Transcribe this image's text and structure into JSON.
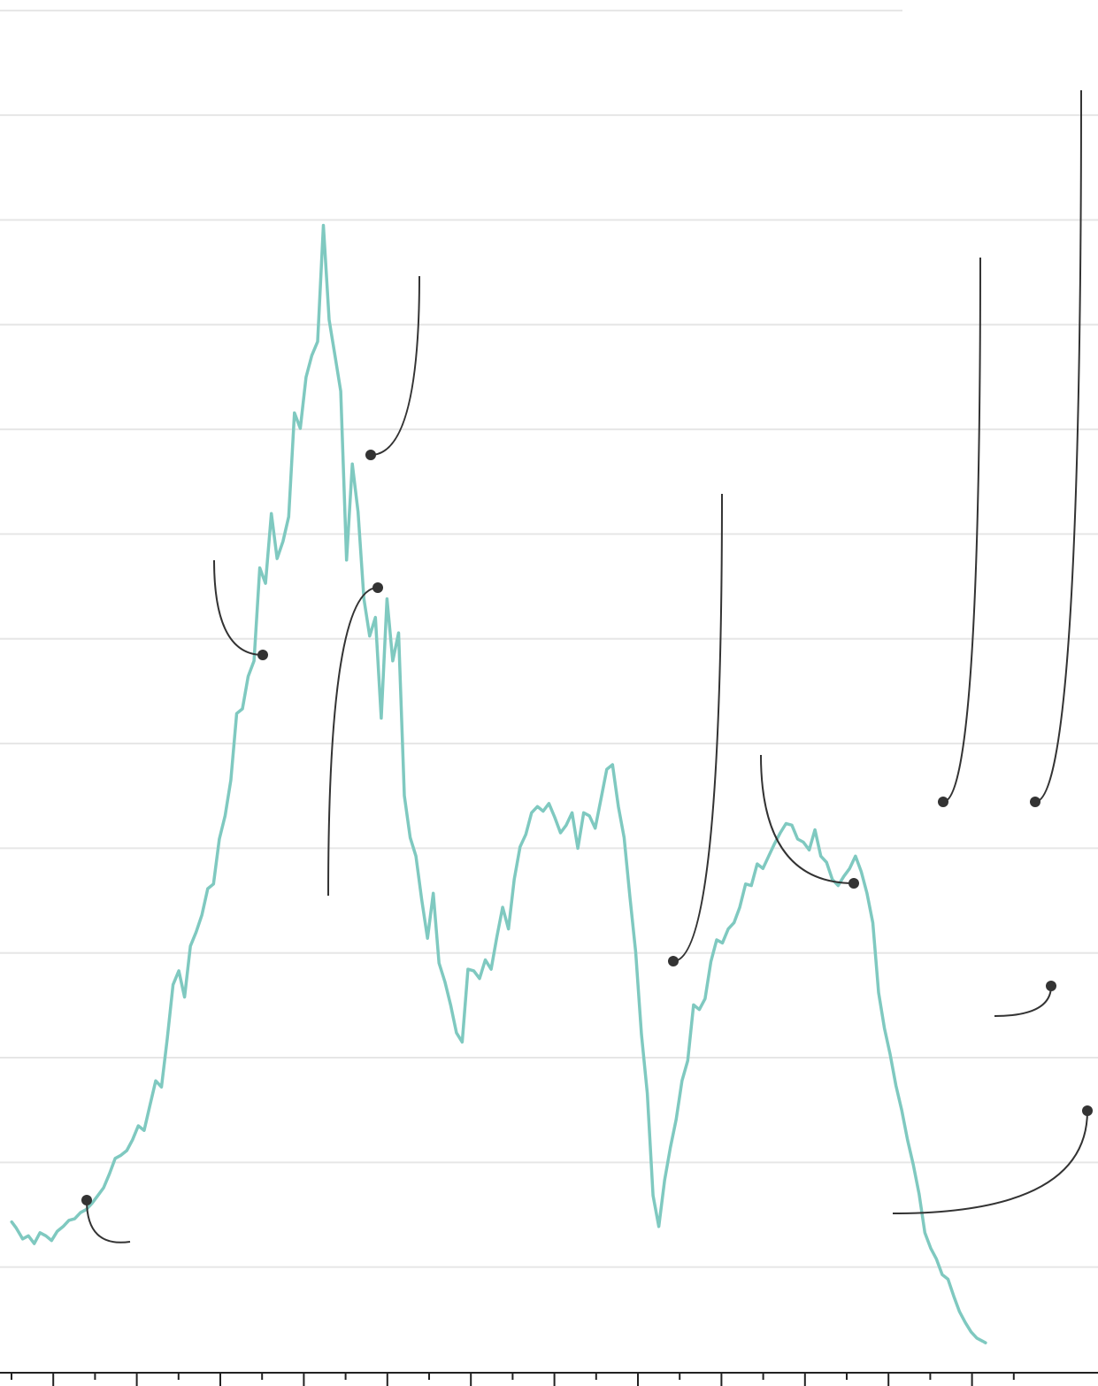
{
  "chart_data": {
    "type": "line",
    "title": "",
    "xlabel": "",
    "ylabel": "",
    "grid": "horizontal",
    "legend": "none",
    "xlim": [
      0,
      25
    ],
    "ylim": [
      0,
      13
    ],
    "y_gridlines": [
      1,
      2,
      3,
      4,
      5,
      6,
      7,
      8,
      9,
      10,
      11,
      12,
      13
    ],
    "x_tick_count": 25,
    "colors": {
      "series": "#7fc9c0",
      "annotation": "#333333",
      "grid": "#e6e6e6",
      "axis": "#222222"
    },
    "series": [
      {
        "values": [
          [
            0.11,
            1.8
          ],
          [
            0.19,
            1.72
          ],
          [
            0.3,
            1.58
          ],
          [
            0.4,
            1.62
          ],
          [
            0.5,
            1.52
          ],
          [
            0.6,
            1.66
          ],
          [
            0.7,
            1.62
          ],
          [
            0.8,
            1.56
          ],
          [
            0.9,
            1.68
          ],
          [
            1.0,
            1.74
          ],
          [
            1.1,
            1.82
          ],
          [
            1.2,
            1.84
          ],
          [
            1.3,
            1.92
          ],
          [
            1.4,
            1.96
          ],
          [
            1.5,
            2.04
          ],
          [
            1.6,
            2.14
          ],
          [
            1.7,
            2.24
          ],
          [
            1.8,
            2.42
          ],
          [
            1.9,
            2.62
          ],
          [
            2.0,
            2.66
          ],
          [
            2.1,
            2.72
          ],
          [
            2.2,
            2.86
          ],
          [
            2.3,
            3.04
          ],
          [
            2.4,
            2.98
          ],
          [
            2.5,
            3.3
          ],
          [
            2.6,
            3.62
          ],
          [
            2.7,
            3.54
          ],
          [
            2.8,
            4.16
          ],
          [
            2.9,
            4.86
          ],
          [
            3.0,
            5.04
          ],
          [
            3.1,
            4.7
          ],
          [
            3.2,
            5.36
          ],
          [
            3.3,
            5.54
          ],
          [
            3.4,
            5.76
          ],
          [
            3.5,
            6.1
          ],
          [
            3.6,
            6.16
          ],
          [
            3.7,
            6.74
          ],
          [
            3.8,
            7.04
          ],
          [
            3.9,
            7.5
          ],
          [
            4.0,
            8.36
          ],
          [
            4.1,
            8.42
          ],
          [
            4.2,
            8.84
          ],
          [
            4.3,
            9.04
          ],
          [
            4.4,
            10.24
          ],
          [
            4.5,
            10.04
          ],
          [
            4.6,
            10.94
          ],
          [
            4.7,
            10.36
          ],
          [
            4.8,
            10.58
          ],
          [
            4.9,
            10.9
          ],
          [
            5.0,
            12.24
          ],
          [
            5.1,
            12.04
          ],
          [
            5.2,
            12.7
          ],
          [
            5.3,
            12.98
          ],
          [
            5.4,
            13.16
          ],
          [
            5.5,
            14.66
          ],
          [
            5.6,
            13.44
          ],
          [
            5.7,
            12.98
          ],
          [
            5.8,
            12.52
          ],
          [
            5.9,
            10.34
          ],
          [
            6.0,
            11.58
          ],
          [
            6.1,
            10.96
          ],
          [
            6.2,
            9.84
          ],
          [
            6.3,
            9.36
          ],
          [
            6.4,
            9.6
          ],
          [
            6.5,
            8.3
          ],
          [
            6.6,
            9.84
          ],
          [
            6.7,
            9.04
          ],
          [
            6.8,
            9.4
          ],
          [
            6.9,
            7.3
          ],
          [
            7.0,
            6.76
          ],
          [
            7.1,
            6.52
          ],
          [
            7.2,
            5.96
          ],
          [
            7.3,
            5.46
          ],
          [
            7.4,
            6.04
          ],
          [
            7.5,
            5.14
          ],
          [
            7.6,
            4.9
          ],
          [
            7.7,
            4.6
          ],
          [
            7.8,
            4.24
          ],
          [
            7.9,
            4.12
          ],
          [
            8.0,
            5.06
          ],
          [
            8.1,
            5.04
          ],
          [
            8.2,
            4.94
          ],
          [
            8.3,
            5.18
          ],
          [
            8.4,
            5.06
          ],
          [
            8.5,
            5.48
          ],
          [
            8.6,
            5.86
          ],
          [
            8.7,
            5.58
          ],
          [
            8.8,
            6.22
          ],
          [
            8.9,
            6.64
          ],
          [
            9.0,
            6.8
          ],
          [
            9.1,
            7.08
          ],
          [
            9.2,
            7.16
          ],
          [
            9.3,
            7.1
          ],
          [
            9.4,
            7.2
          ],
          [
            9.5,
            7.02
          ],
          [
            9.6,
            6.82
          ],
          [
            9.7,
            6.92
          ],
          [
            9.8,
            7.08
          ],
          [
            9.9,
            6.62
          ],
          [
            10.0,
            7.08
          ],
          [
            10.1,
            7.04
          ],
          [
            10.2,
            6.88
          ],
          [
            10.3,
            7.26
          ],
          [
            10.4,
            7.64
          ],
          [
            10.5,
            7.7
          ],
          [
            10.6,
            7.16
          ],
          [
            10.7,
            6.76
          ],
          [
            10.8,
            6.0
          ],
          [
            10.9,
            5.28
          ],
          [
            11.0,
            4.22
          ],
          [
            11.1,
            3.46
          ],
          [
            11.2,
            2.14
          ],
          [
            11.3,
            1.74
          ],
          [
            11.4,
            2.34
          ],
          [
            11.5,
            2.76
          ],
          [
            11.6,
            3.12
          ],
          [
            11.7,
            3.62
          ],
          [
            11.8,
            3.88
          ],
          [
            11.9,
            4.6
          ],
          [
            12.0,
            4.54
          ],
          [
            12.1,
            4.68
          ],
          [
            12.2,
            5.16
          ],
          [
            12.3,
            5.44
          ],
          [
            12.4,
            5.4
          ],
          [
            12.5,
            5.58
          ],
          [
            12.6,
            5.66
          ],
          [
            12.7,
            5.86
          ],
          [
            12.8,
            6.16
          ],
          [
            12.9,
            6.14
          ],
          [
            13.0,
            6.42
          ],
          [
            13.1,
            6.36
          ],
          [
            13.2,
            6.52
          ],
          [
            13.3,
            6.68
          ],
          [
            13.4,
            6.82
          ],
          [
            13.5,
            6.94
          ],
          [
            13.6,
            6.92
          ],
          [
            13.7,
            6.74
          ],
          [
            13.8,
            6.7
          ],
          [
            13.9,
            6.6
          ],
          [
            14.0,
            6.86
          ],
          [
            14.1,
            6.52
          ],
          [
            14.2,
            6.44
          ],
          [
            14.3,
            6.22
          ],
          [
            14.4,
            6.14
          ],
          [
            14.5,
            6.26
          ],
          [
            14.6,
            6.36
          ],
          [
            14.7,
            6.52
          ],
          [
            14.8,
            6.32
          ],
          [
            14.9,
            6.04
          ],
          [
            15.0,
            5.66
          ],
          [
            15.1,
            4.76
          ],
          [
            15.2,
            4.3
          ],
          [
            15.3,
            3.96
          ],
          [
            15.4,
            3.56
          ],
          [
            15.5,
            3.24
          ],
          [
            15.6,
            2.86
          ],
          [
            15.7,
            2.54
          ],
          [
            15.8,
            2.16
          ],
          [
            15.9,
            1.66
          ],
          [
            16.0,
            1.46
          ],
          [
            16.1,
            1.32
          ],
          [
            16.2,
            1.12
          ],
          [
            16.3,
            1.06
          ],
          [
            16.4,
            0.84
          ],
          [
            16.5,
            0.64
          ],
          [
            16.6,
            0.5
          ],
          [
            16.7,
            0.38
          ],
          [
            16.8,
            0.3
          ],
          [
            16.9,
            0.26
          ],
          [
            16.95,
            0.24
          ]
        ]
      }
    ],
    "annotation_points": [
      [
        0.7,
        1.62
      ],
      [
        4.1,
        8.42
      ],
      [
        6.0,
        11.58
      ],
      [
        6.2,
        9.36
      ],
      [
        11.0,
        4.22
      ],
      [
        16.3,
        5.06
      ],
      [
        17.1,
        6.52
      ],
      [
        18.2,
        6.52
      ],
      [
        18.4,
        3.46
      ],
      [
        19.3,
        2.14
      ]
    ]
  }
}
